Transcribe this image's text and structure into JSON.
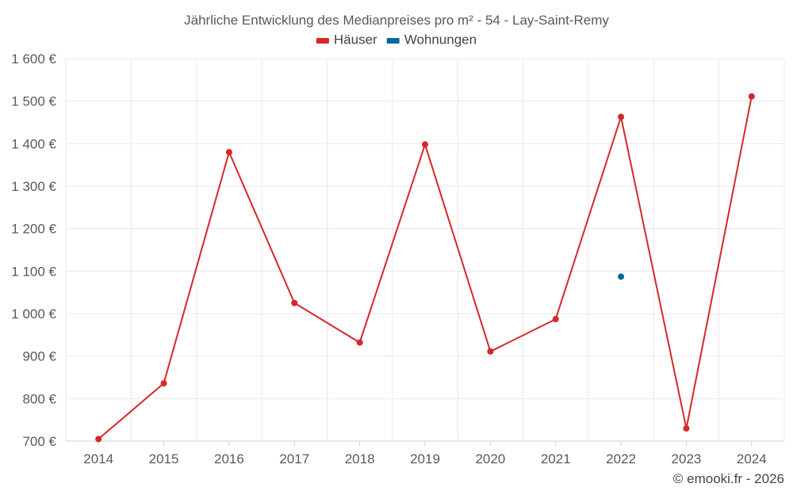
{
  "chart_data": {
    "type": "line",
    "title": "Jährliche Entwicklung des Medianpreises pro m² - 54 - Lay-Saint-Remy",
    "categories": [
      "2014",
      "2015",
      "2016",
      "2017",
      "2018",
      "2019",
      "2020",
      "2021",
      "2022",
      "2023",
      "2024"
    ],
    "series": [
      {
        "name": "Häuser",
        "color": "#d62728",
        "values": [
          705,
          836,
          1380,
          1025,
          932,
          1398,
          911,
          987,
          1463,
          730,
          1511
        ]
      },
      {
        "name": "Wohnungen",
        "color": "#08679f",
        "values": [
          null,
          null,
          null,
          null,
          null,
          null,
          null,
          null,
          1087,
          null,
          null
        ]
      }
    ],
    "ylim": [
      700,
      1600
    ],
    "yticks": [
      700,
      800,
      900,
      1000,
      1100,
      1200,
      1300,
      1400,
      1500,
      1600
    ],
    "ytick_labels": [
      "700 €",
      "800 €",
      "900 €",
      "1 000 €",
      "1 100 €",
      "1 200 €",
      "1 300 €",
      "1 400 €",
      "1 500 €",
      "1 600 €"
    ],
    "xlabel": "",
    "ylabel": "",
    "grid": true,
    "legend_position": "top-center"
  },
  "credit": "© emooki.fr - 2026"
}
